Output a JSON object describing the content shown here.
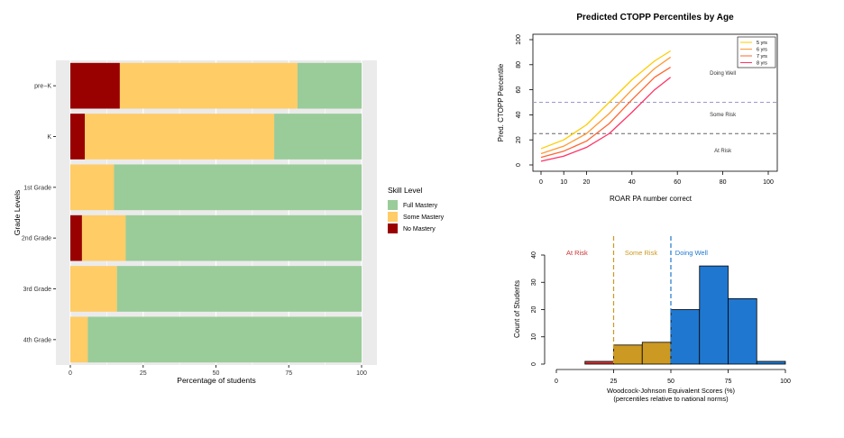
{
  "chart_data": [
    {
      "type": "bar",
      "orientation": "horizontal",
      "stacked": true,
      "xlabel": "Percentage of students",
      "ylabel": "Grade Levels",
      "xlim": [
        0,
        100
      ],
      "xticks": [
        "0",
        "25",
        "50",
        "75",
        "100"
      ],
      "categories": [
        "pre−K",
        "K",
        "1st Grade",
        "2nd Grade",
        "3rd Grade",
        "4th Grade"
      ],
      "series": [
        {
          "name": "No Mastery",
          "color": "#990000",
          "values": [
            17,
            5,
            0,
            4,
            0,
            0
          ]
        },
        {
          "name": "Some Mastery",
          "color": "#ffcc66",
          "values": [
            61,
            65,
            15,
            15,
            16,
            6
          ]
        },
        {
          "name": "Full Mastery",
          "color": "#99cc99",
          "values": [
            22,
            30,
            85,
            81,
            84,
            94
          ]
        }
      ],
      "legend": {
        "title": "Skill Level",
        "position": "right",
        "entries": [
          "Full Mastery",
          "Some Mastery",
          "No Mastery"
        ]
      },
      "panel_background": "#ebebeb",
      "grid": true
    },
    {
      "type": "line",
      "title": "Predicted CTOPP Percentiles by Age",
      "xlabel": "ROAR PA number correct",
      "ylabel": "Pred. CTOPP Percentile",
      "xlim": [
        0,
        100
      ],
      "ylim": [
        0,
        100
      ],
      "xticks": [
        "0",
        "10",
        "20",
        "40",
        "60",
        "80",
        "100"
      ],
      "yticks": [
        "0",
        "20",
        "40",
        "60",
        "80",
        "100"
      ],
      "series": [
        {
          "name": "5 yrs",
          "color": "#ffcc00",
          "x": [
            0,
            10,
            20,
            30,
            40,
            50,
            57
          ],
          "values": [
            13,
            20,
            32,
            50,
            68,
            83,
            91
          ]
        },
        {
          "name": "6 yrs",
          "color": "#ff9933",
          "x": [
            0,
            10,
            20,
            30,
            40,
            50,
            57
          ],
          "values": [
            9,
            15,
            25,
            41,
            60,
            77,
            86
          ]
        },
        {
          "name": "7 yrs",
          "color": "#ff6633",
          "x": [
            0,
            10,
            20,
            30,
            40,
            50,
            57
          ],
          "values": [
            6,
            11,
            19,
            33,
            52,
            70,
            78
          ]
        },
        {
          "name": "8 yrs",
          "color": "#ff3366",
          "x": [
            0,
            10,
            20,
            30,
            40,
            50,
            57
          ],
          "values": [
            3,
            7,
            14,
            25,
            42,
            60,
            70
          ]
        }
      ],
      "reference_lines": [
        {
          "y": 50,
          "color": "#9999cc",
          "style": "dashed"
        },
        {
          "y": 25,
          "color": "#666666",
          "style": "dashed"
        }
      ],
      "region_labels": [
        {
          "text": "Doing Well",
          "x": 80,
          "y": 72
        },
        {
          "text": "Some Risk",
          "x": 80,
          "y": 39
        },
        {
          "text": "At Risk",
          "x": 80,
          "y": 10
        }
      ],
      "legend": {
        "position": "top-right",
        "entries": [
          "5 yrs",
          "6 yrs",
          "7 yrs",
          "8 yrs"
        ]
      },
      "grid": false
    },
    {
      "type": "bar",
      "subtype": "histogram",
      "xlabel": "Woodcock-Johnson Equivalent Scores (%)",
      "xlabel2": "(percentiles relative to national norms)",
      "ylabel": "Count of Students",
      "xlim": [
        0,
        100
      ],
      "ylim": [
        0,
        40
      ],
      "xticks": [
        "0",
        "25",
        "50",
        "75",
        "100"
      ],
      "yticks": [
        "0",
        "10",
        "20",
        "30",
        "40"
      ],
      "bins": [
        {
          "x0": 0,
          "x1": 12.5,
          "count": 0,
          "color": "#cc3333"
        },
        {
          "x0": 12.5,
          "x1": 25,
          "count": 1,
          "color": "#cc3333"
        },
        {
          "x0": 25,
          "x1": 37.5,
          "count": 7,
          "color": "#cc9922"
        },
        {
          "x0": 37.5,
          "x1": 50,
          "count": 8,
          "color": "#cc9922"
        },
        {
          "x0": 50,
          "x1": 62.5,
          "count": 20,
          "color": "#1f77cf"
        },
        {
          "x0": 62.5,
          "x1": 75,
          "count": 36,
          "color": "#1f77cf"
        },
        {
          "x0": 75,
          "x1": 87.5,
          "count": 24,
          "color": "#1f77cf"
        },
        {
          "x0": 87.5,
          "x1": 100,
          "count": 1,
          "color": "#1f77cf"
        }
      ],
      "reference_lines": [
        {
          "x": 25,
          "color": "#cc9922",
          "style": "dashed"
        },
        {
          "x": 50,
          "color": "#1f77cf",
          "style": "dashed"
        }
      ],
      "region_labels": [
        {
          "text": "At Risk",
          "x": 9,
          "color": "#cc3333"
        },
        {
          "text": "Some Risk",
          "x": 37,
          "color": "#cc9922"
        },
        {
          "text": "Doing Well",
          "x": 59,
          "color": "#1f77cf"
        }
      ],
      "grid": false
    }
  ]
}
